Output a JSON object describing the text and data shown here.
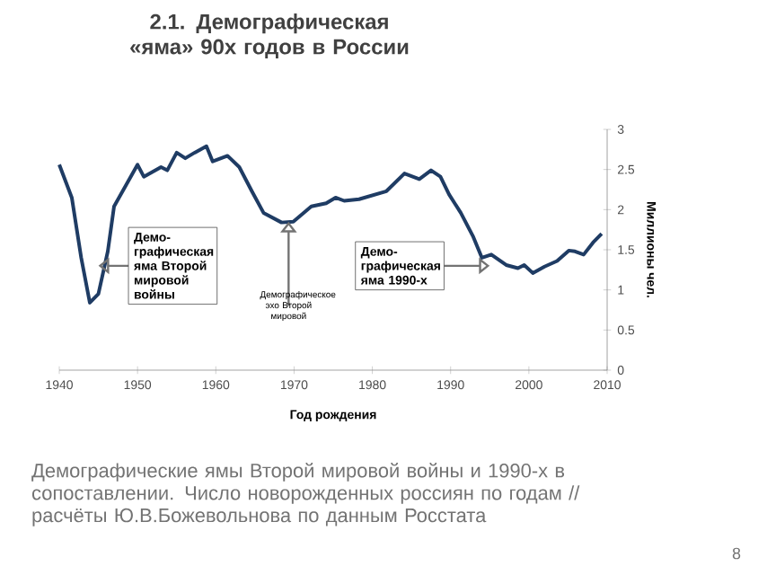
{
  "chart_data": {
    "type": "line",
    "title": "2.1. Демографическая «яма» 90х годов в России",
    "xlabel": "Год рождения",
    "ylabel": "Миллионы чел.",
    "x": [
      1940,
      1941.6,
      1942.8,
      1943.9,
      1945,
      1946.2,
      1947,
      1948.5,
      1950,
      1950.8,
      1953,
      1953.8,
      1955,
      1956.1,
      1957.3,
      1958.8,
      1959.6,
      1961.5,
      1963,
      1964.6,
      1966.1,
      1968.4,
      1969.9,
      1972.2,
      1974.1,
      1975.3,
      1976.4,
      1978.3,
      1981.8,
      1984.1,
      1986,
      1987.5,
      1988.7,
      1989.8,
      1991.3,
      1992.9,
      1994,
      1995.2,
      1997.1,
      1998.6,
      1999.4,
      2000.5,
      2002,
      2003.6,
      2005.1,
      2005.9,
      2007,
      2008.2,
      2009.3
    ],
    "series": [
      {
        "color": "#1f3c64",
        "values": [
          2.56,
          2.15,
          1.4,
          0.84,
          0.95,
          1.48,
          2.04,
          2.3,
          2.56,
          2.41,
          2.53,
          2.49,
          2.71,
          2.64,
          2.71,
          2.79,
          2.6,
          2.67,
          2.53,
          2.23,
          1.96,
          1.84,
          1.85,
          2.04,
          2.08,
          2.15,
          2.11,
          2.13,
          2.23,
          2.45,
          2.38,
          2.49,
          2.41,
          2.19,
          1.96,
          1.66,
          1.4,
          1.44,
          1.31,
          1.27,
          1.31,
          1.21,
          1.29,
          1.36,
          1.49,
          1.48,
          1.44,
          1.59,
          1.7
        ]
      }
    ],
    "xlim": [
      1940,
      2010
    ],
    "xticks": [
      1940,
      1950,
      1960,
      1970,
      1980,
      1990,
      2000,
      2010
    ],
    "ylim": [
      0,
      3
    ],
    "yticks": [
      0,
      0.5,
      1,
      1.5,
      2,
      2.5,
      3
    ],
    "grid": false,
    "annotations": [
      {
        "text": "Демо-графическая яма Второй мировой войны",
        "x": 1945,
        "y": 1.3
      },
      {
        "text": "Демографическое эхо Второй мировой",
        "x": 1969.3,
        "y": 1.85
      },
      {
        "text": "Демо-графическая яма 1990-х",
        "x": 1995,
        "y": 1.3
      },
      "Демографические ямы Второй мировой войны и 1990-х в сопоставлении. Число новорожденных россиян по годам // расчёты Ю.В.Божевольнова по данным Росстата",
      "8"
    ]
  }
}
